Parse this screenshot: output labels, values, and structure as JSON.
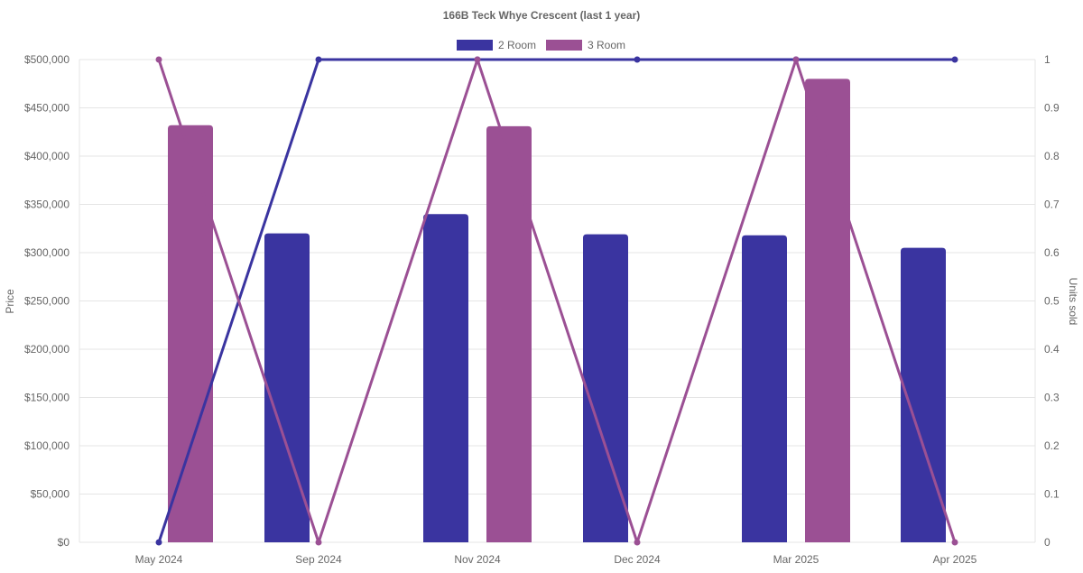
{
  "chart_data": {
    "type": "bar",
    "title": "166B Teck Whye Crescent (last 1 year)",
    "categories": [
      "May 2024",
      "Sep 2024",
      "Nov 2024",
      "Dec 2024",
      "Mar 2025",
      "Apr 2025"
    ],
    "y_left": {
      "label": "Price",
      "range": [
        0,
        500000
      ],
      "ticks": [
        "$0",
        "$50,000",
        "$100,000",
        "$150,000",
        "$200,000",
        "$250,000",
        "$300,000",
        "$350,000",
        "$400,000",
        "$450,000",
        "$500,000"
      ]
    },
    "y_right": {
      "label": "Units sold",
      "range": [
        0,
        1
      ],
      "ticks": [
        "0",
        "0.1",
        "0.2",
        "0.3",
        "0.4",
        "0.5",
        "0.6",
        "0.7",
        "0.8",
        "0.9",
        "1"
      ]
    },
    "series": [
      {
        "name": "2 Room",
        "color": "#3a34a0",
        "price": [
          null,
          320000,
          340000,
          319000,
          318000,
          305000
        ],
        "units_sold": [
          0,
          1,
          1,
          1,
          1,
          1
        ]
      },
      {
        "name": "3 Room",
        "color": "#9b5094",
        "price": [
          432000,
          null,
          431000,
          null,
          480000,
          null
        ],
        "units_sold": [
          1,
          0,
          1,
          0,
          1,
          0
        ]
      }
    ],
    "grid": true,
    "legend_position": "top-center"
  }
}
